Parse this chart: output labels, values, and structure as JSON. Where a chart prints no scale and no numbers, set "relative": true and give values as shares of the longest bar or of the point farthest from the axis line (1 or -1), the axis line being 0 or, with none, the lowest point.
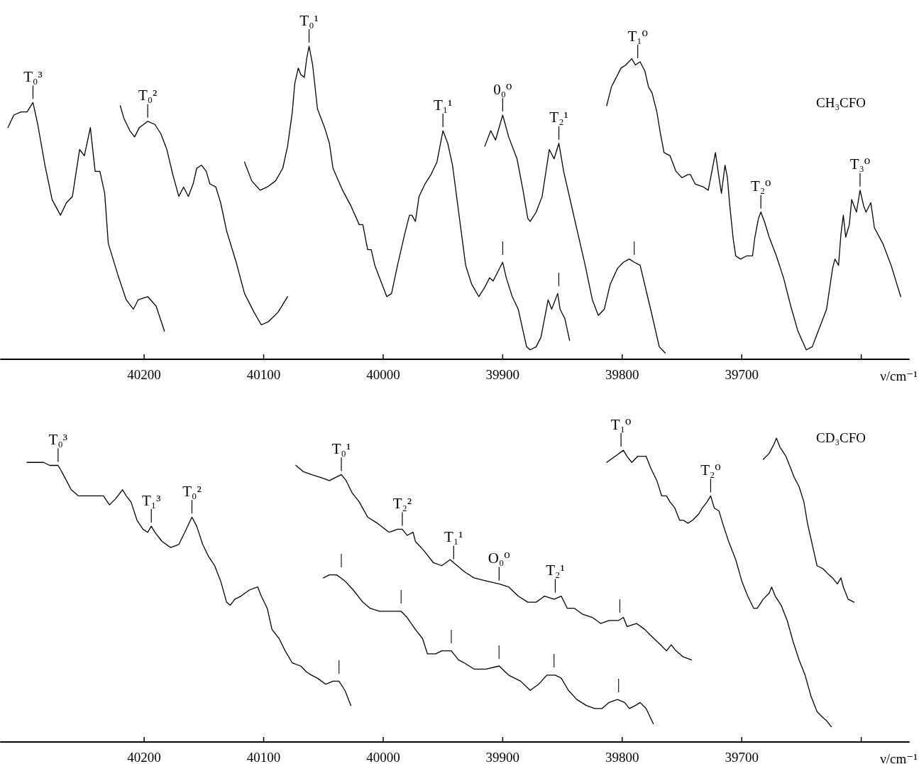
{
  "chart_data": [
    {
      "type": "line",
      "title": "CH₃CFO",
      "xlabel": "ν/cm⁻¹",
      "relative": true,
      "marker": "none",
      "tick_labels": "x",
      "xlim": [
        40320,
        39560
      ],
      "xticks": [
        40200,
        40100,
        40000,
        39900,
        39800,
        39700,
        {
          "value": 39600,
          "label": null
        }
      ],
      "series": [
        {
          "color": "#000000",
          "x": [
            40314,
            40309,
            40303,
            40298,
            40293,
            40289,
            40283,
            40277,
            40270,
            40265,
            40260,
            40256,
            40254,
            40250,
            40245,
            40241,
            40237,
            40233,
            40230,
            40222,
            40215,
            40209,
            40205,
            40197,
            40190,
            40183
          ],
          "values": [
            0.74,
            0.78,
            0.79,
            0.79,
            0.82,
            0.75,
            0.62,
            0.51,
            0.46,
            0.5,
            0.52,
            0.62,
            0.67,
            0.65,
            0.74,
            0.6,
            0.6,
            0.53,
            0.37,
            0.27,
            0.19,
            0.16,
            0.19,
            0.2,
            0.17,
            0.09
          ]
        },
        {
          "color": "#000000",
          "x": [
            40220,
            40217,
            40212,
            40208,
            40204,
            40197,
            40191,
            40186,
            40181,
            40176,
            40171,
            40167,
            40163,
            40159,
            40156,
            40152,
            40148,
            40145,
            40140,
            40136,
            40131,
            40123,
            40116,
            40108,
            40102,
            40096,
            40088,
            40080
          ],
          "values": [
            0.81,
            0.77,
            0.73,
            0.71,
            0.74,
            0.76,
            0.75,
            0.72,
            0.67,
            0.59,
            0.52,
            0.55,
            0.52,
            0.56,
            0.61,
            0.62,
            0.6,
            0.56,
            0.55,
            0.5,
            0.41,
            0.31,
            0.21,
            0.15,
            0.11,
            0.12,
            0.15,
            0.2
          ]
        },
        {
          "color": "#000000",
          "x": [
            40116,
            40110,
            40103,
            40097,
            40090,
            40084,
            40080,
            40076,
            40074,
            40071,
            40069,
            40066,
            40064,
            40062,
            40059,
            40055,
            40049,
            40045,
            40042,
            40034,
            40027,
            40020,
            40017,
            40013,
            40010,
            40007,
            40002,
            39997,
            39993,
            39988,
            39982,
            39978,
            39976,
            39973,
            39970,
            39965,
            39960,
            39955,
            39950,
            39946,
            39942,
            39931,
            39926,
            39920,
            39915,
            39911,
            39908,
            39904,
            39900,
            39897,
            39892,
            39887,
            39880,
            39877,
            39872,
            39868,
            39864,
            39862,
            39859,
            39854,
            39852,
            39848,
            39844
          ],
          "values": [
            0.63,
            0.57,
            0.54,
            0.55,
            0.57,
            0.61,
            0.68,
            0.79,
            0.88,
            0.93,
            0.91,
            0.9,
            0.96,
            1,
            0.94,
            0.8,
            0.74,
            0.69,
            0.61,
            0.54,
            0.49,
            0.43,
            0.43,
            0.35,
            0.35,
            0.3,
            0.25,
            0.2,
            0.21,
            0.3,
            0.4,
            0.46,
            0.46,
            0.44,
            0.52,
            0.56,
            0.59,
            0.63,
            0.73,
            0.69,
            0.62,
            0.3,
            0.24,
            0.2,
            0.23,
            0.26,
            0.25,
            0.28,
            0.31,
            0.26,
            0.2,
            0.16,
            0.04,
            0.03,
            0.04,
            0.07,
            0.15,
            0.19,
            0.16,
            0.21,
            0.16,
            0.13,
            0.06
          ]
        },
        {
          "color": "#000000",
          "x": [
            39915,
            39910,
            39906,
            39900,
            39895,
            39888,
            39883,
            39879,
            39877,
            39872,
            39867,
            39863,
            39861,
            39857,
            39853,
            39849,
            39843,
            39837,
            39831,
            39825,
            39820,
            39815,
            39810,
            39804,
            39799,
            39794,
            39790,
            39785,
            39780,
            39775,
            39769,
            39764
          ],
          "values": [
            0.68,
            0.73,
            0.7,
            0.78,
            0.71,
            0.64,
            0.54,
            0.45,
            0.44,
            0.47,
            0.52,
            0.62,
            0.67,
            0.64,
            0.69,
            0.6,
            0.5,
            0.4,
            0.3,
            0.19,
            0.14,
            0.16,
            0.24,
            0.29,
            0.31,
            0.32,
            0.31,
            0.3,
            0.22,
            0.14,
            0.04,
            0.02
          ]
        },
        {
          "color": "#000000",
          "x": [
            39813,
            39809,
            39805,
            39801,
            39797,
            39792,
            39789,
            39785,
            39781,
            39778,
            39775,
            39771,
            39768,
            39765,
            39760,
            39755,
            39750,
            39745,
            39743,
            39739,
            39732,
            39728,
            39724,
            39722,
            39719,
            39717,
            39716,
            39714,
            39712,
            39710,
            39707,
            39705,
            39701,
            39696,
            39691,
            39689,
            39686,
            39684,
            39681,
            39677,
            39671,
            39665,
            39659,
            39653,
            39646,
            39641,
            39637,
            39629,
            39624,
            39622,
            39619,
            39617,
            39615,
            39613,
            39610,
            39608,
            39606,
            39604,
            39601,
            39598,
            39596,
            39592,
            39589,
            39582,
            39575,
            39567
          ],
          "values": [
            0.81,
            0.87,
            0.9,
            0.93,
            0.94,
            0.96,
            0.94,
            0.95,
            0.92,
            0.87,
            0.85,
            0.79,
            0.72,
            0.66,
            0.65,
            0.6,
            0.58,
            0.59,
            0.59,
            0.56,
            0.55,
            0.54,
            0.62,
            0.66,
            0.58,
            0.53,
            0.56,
            0.62,
            0.58,
            0.49,
            0.38,
            0.33,
            0.32,
            0.33,
            0.33,
            0.39,
            0.45,
            0.47,
            0.44,
            0.39,
            0.33,
            0.26,
            0.17,
            0.09,
            0.03,
            0.04,
            0.08,
            0.16,
            0.29,
            0.32,
            0.3,
            0.4,
            0.46,
            0.39,
            0.43,
            0.51,
            0.49,
            0.47,
            0.54,
            0.49,
            0.47,
            0.5,
            0.42,
            0.37,
            0.3,
            0.2
          ]
        }
      ],
      "annotations": [
        {
          "text": "T₀³",
          "x": 40293,
          "y": 0.82
        },
        {
          "text": "T₀²",
          "x": 40197,
          "y": 0.76
        },
        {
          "text": "T₀¹",
          "x": 40062,
          "y": 1
        },
        {
          "text": "T₁¹",
          "x": 39950,
          "y": 0.73
        },
        {
          "text": "0₀⁰",
          "x": 39900,
          "y": 0.78
        },
        {
          "text": "T₂¹",
          "x": 39853,
          "y": 0.69
        },
        {
          "text": "T₁⁰",
          "x": 39787,
          "y": 0.95
        },
        {
          "text": "T₂⁰",
          "x": 39684,
          "y": 0.47
        },
        {
          "text": "T₃⁰",
          "x": 39601,
          "y": 0.54
        },
        {
          "text": "|",
          "x": 39900,
          "y": 0.31
        },
        {
          "text": "|",
          "x": 39853,
          "y": 0.21
        },
        {
          "text": "|",
          "x": 39790,
          "y": 0.31
        }
      ]
    },
    {
      "type": "line",
      "title": "CD₃CFO",
      "xlabel": "ν/cm⁻¹",
      "relative": true,
      "marker": "none",
      "tick_labels": "x",
      "xlim": [
        40320,
        39560
      ],
      "xticks": [
        40200,
        40100,
        40000,
        39900,
        39800,
        39700,
        {
          "value": 39600,
          "label": null
        }
      ],
      "series": [
        {
          "color": "#000000",
          "x": [
            40298,
            40292,
            40289,
            40284,
            40279,
            40272,
            40269,
            40265,
            40261,
            40255,
            40245,
            40234,
            40229,
            40224,
            40218,
            40215,
            40211,
            40206,
            40201,
            40197,
            40194,
            40191,
            40185,
            40178,
            40171,
            40166,
            40160,
            40156,
            40151,
            40146,
            40141,
            40136,
            40131,
            40128,
            40124,
            40119,
            40112,
            40105,
            40102,
            40097,
            40093,
            40087,
            40082,
            40076,
            40069,
            40064,
            40060,
            40055,
            40048,
            40042,
            40037,
            40032,
            40027
          ],
          "values": [
            0.92,
            0.92,
            0.92,
            0.92,
            0.91,
            0.91,
            0.89,
            0.86,
            0.83,
            0.81,
            0.81,
            0.81,
            0.78,
            0.8,
            0.83,
            0.81,
            0.79,
            0.73,
            0.7,
            0.69,
            0.71,
            0.69,
            0.66,
            0.64,
            0.65,
            0.69,
            0.74,
            0.71,
            0.65,
            0.61,
            0.58,
            0.53,
            0.46,
            0.45,
            0.47,
            0.48,
            0.5,
            0.51,
            0.48,
            0.44,
            0.37,
            0.34,
            0.3,
            0.26,
            0.25,
            0.23,
            0.22,
            0.21,
            0.19,
            0.2,
            0.2,
            0.17,
            0.12
          ]
        },
        {
          "color": "#000000",
          "x": [
            40073,
            40067,
            40060,
            40052,
            40045,
            40040,
            40035,
            40031,
            40026,
            40020,
            40013,
            40005,
            39995,
            39988,
            39984,
            39980,
            39975,
            39973,
            39966,
            39958,
            39951,
            39944,
            39941,
            39932,
            39924,
            39914,
            39903,
            39895,
            39887,
            39879,
            39872,
            39865,
            39857,
            39851,
            39846,
            39840,
            39833,
            39825,
            39818,
            39811,
            39803,
            39799,
            39796,
            39788,
            39781,
            39776,
            39768,
            39763,
            39759,
            39755,
            39749,
            39742
          ],
          "values": [
            0.91,
            0.89,
            0.88,
            0.87,
            0.86,
            0.87,
            0.88,
            0.86,
            0.82,
            0.79,
            0.74,
            0.72,
            0.69,
            0.7,
            0.7,
            0.68,
            0.69,
            0.66,
            0.63,
            0.59,
            0.58,
            0.6,
            0.59,
            0.56,
            0.54,
            0.53,
            0.52,
            0.51,
            0.48,
            0.46,
            0.46,
            0.48,
            0.47,
            0.48,
            0.44,
            0.44,
            0.42,
            0.41,
            0.39,
            0.4,
            0.4,
            0.41,
            0.38,
            0.39,
            0.37,
            0.35,
            0.32,
            0.3,
            0.32,
            0.3,
            0.28,
            0.27
          ]
        },
        {
          "color": "#000000",
          "x": [
            40050,
            40045,
            40039,
            40032,
            40025,
            40017,
            40011,
            40003,
            39993,
            39985,
            39980,
            39973,
            39967,
            39963,
            39956,
            39951,
            39943,
            39937,
            39932,
            39924,
            39914,
            39903,
            39895,
            39885,
            39877,
            39870,
            39863,
            39856,
            39851,
            39845,
            39838,
            39830,
            39823,
            39817,
            39811,
            39804,
            39798,
            39794,
            39789,
            39785,
            39780,
            39774
          ],
          "values": [
            0.54,
            0.55,
            0.55,
            0.53,
            0.5,
            0.46,
            0.44,
            0.43,
            0.43,
            0.43,
            0.41,
            0.37,
            0.34,
            0.29,
            0.29,
            0.3,
            0.3,
            0.27,
            0.26,
            0.24,
            0.24,
            0.25,
            0.22,
            0.2,
            0.17,
            0.19,
            0.22,
            0.22,
            0.21,
            0.17,
            0.14,
            0.12,
            0.11,
            0.11,
            0.13,
            0.14,
            0.13,
            0.11,
            0.12,
            0.13,
            0.11,
            0.06
          ]
        },
        {
          "color": "#000000",
          "x": [
            39813,
            39806,
            39799,
            39796,
            39792,
            39787,
            39780,
            39776,
            39771,
            39767,
            39763,
            39760,
            39756,
            39752,
            39749,
            39745,
            39741,
            39736,
            39733,
            39729,
            39726,
            39723,
            39719,
            39716,
            39711,
            39705,
            39700,
            39695,
            39690,
            39687,
            39682,
            39677,
            39675,
            39672,
            39667,
            39662,
            39657,
            39652,
            39647,
            39642,
            39637,
            39632,
            39629,
            39625
          ],
          "values": [
            0.92,
            0.94,
            0.96,
            0.94,
            0.92,
            0.94,
            0.94,
            0.9,
            0.86,
            0.81,
            0.81,
            0.79,
            0.77,
            0.73,
            0.73,
            0.72,
            0.73,
            0.75,
            0.77,
            0.79,
            0.81,
            0.77,
            0.76,
            0.72,
            0.66,
            0.6,
            0.53,
            0.48,
            0.44,
            0.44,
            0.47,
            0.49,
            0.51,
            0.48,
            0.45,
            0.4,
            0.33,
            0.27,
            0.22,
            0.15,
            0.1,
            0.08,
            0.07,
            0.05
          ]
        },
        {
          "color": "#000000",
          "x": [
            39682,
            39677,
            39673,
            39671,
            39668,
            39663,
            39660,
            39656,
            39652,
            39648,
            39645,
            39641,
            39637,
            39632,
            39627,
            39624,
            39620,
            39617,
            39615,
            39611,
            39606
          ],
          "values": [
            0.93,
            0.95,
            0.98,
            1,
            0.97,
            0.94,
            0.91,
            0.87,
            0.84,
            0.79,
            0.72,
            0.65,
            0.58,
            0.57,
            0.55,
            0.54,
            0.52,
            0.54,
            0.51,
            0.47,
            0.46
          ]
        }
      ],
      "annotations": [
        {
          "text": "T₀³",
          "x": 40272,
          "y": 0.91
        },
        {
          "text": "T₁³",
          "x": 40194,
          "y": 0.71
        },
        {
          "text": "T₀²",
          "x": 40160,
          "y": 0.74
        },
        {
          "text": "T₀¹",
          "x": 40035,
          "y": 0.88
        },
        {
          "text": "T₂²",
          "x": 39984,
          "y": 0.7
        },
        {
          "text": "T₁¹",
          "x": 39941,
          "y": 0.59
        },
        {
          "text": "O₀⁰",
          "x": 39903,
          "y": 0.52
        },
        {
          "text": "T₂¹",
          "x": 39856,
          "y": 0.48
        },
        {
          "text": "T₁⁰",
          "x": 39801,
          "y": 0.96
        },
        {
          "text": "T₂⁰",
          "x": 39726,
          "y": 0.81
        },
        {
          "text": "|",
          "x": 40035,
          "y": 0.55
        },
        {
          "text": "|",
          "x": 40037,
          "y": 0.2
        },
        {
          "text": "|",
          "x": 39985,
          "y": 0.43
        },
        {
          "text": "|",
          "x": 39943,
          "y": 0.3
        },
        {
          "text": "|",
          "x": 39903,
          "y": 0.25
        },
        {
          "text": "|",
          "x": 39857,
          "y": 0.22
        },
        {
          "text": "|",
          "x": 39802,
          "y": 0.4
        },
        {
          "text": "|",
          "x": 39803,
          "y": 0.14
        }
      ]
    }
  ]
}
